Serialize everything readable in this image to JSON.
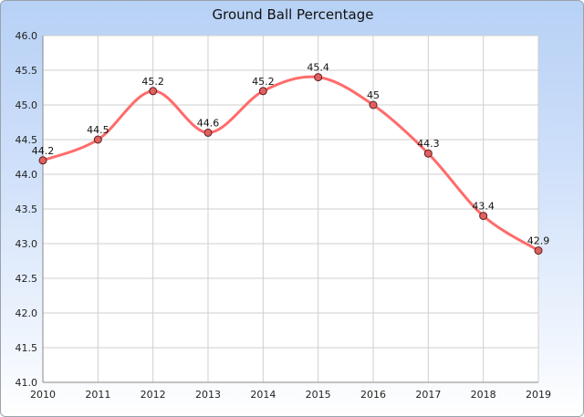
{
  "chart_data": {
    "type": "line",
    "title": "Ground Ball Percentage",
    "xlabel": "",
    "ylabel": "",
    "categories": [
      "2010",
      "2011",
      "2012",
      "2013",
      "2014",
      "2015",
      "2016",
      "2017",
      "2018",
      "2019"
    ],
    "series": [
      {
        "values": [
          44.2,
          44.5,
          45.2,
          44.6,
          45.2,
          45.4,
          45.0,
          44.3,
          43.4,
          42.9
        ],
        "labels": [
          "44.2",
          "44.5",
          "45.2",
          "44.6",
          "45.2",
          "45.4",
          "45",
          "44.3",
          "43.4",
          "42.9"
        ]
      }
    ],
    "ylim": [
      41.0,
      46.0
    ],
    "yticks": [
      "41.0",
      "41.5",
      "42.0",
      "42.5",
      "43.0",
      "43.5",
      "44.0",
      "44.5",
      "45.0",
      "45.5",
      "46.0"
    ],
    "grid": true,
    "line_color": "#ff6b6b",
    "marker_color": "#e06060"
  }
}
